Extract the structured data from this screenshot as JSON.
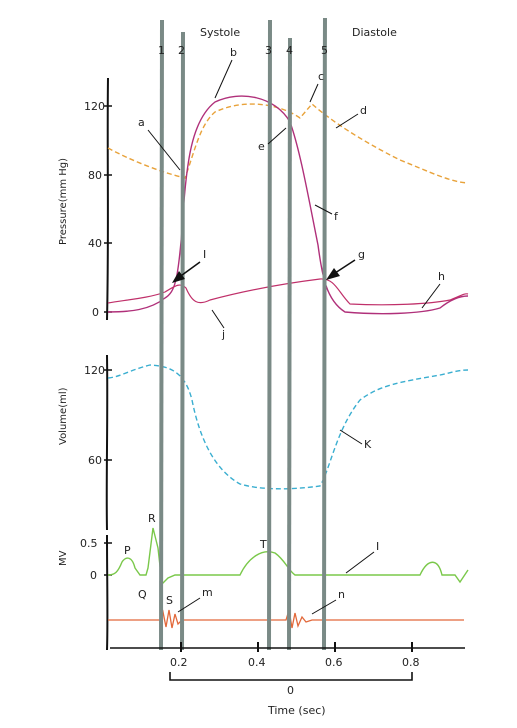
{
  "header": {
    "systole": "Systole",
    "diastole": "Diastole"
  },
  "phase_lines": [
    "1",
    "2",
    "3",
    "4",
    "5"
  ],
  "pressure_panel": {
    "ylabel": "Pressure(mm Hg)",
    "ticks": [
      "120",
      "80",
      "40",
      "0"
    ]
  },
  "volume_panel": {
    "ylabel": "Volume(ml)",
    "ticks": [
      "120",
      "60"
    ]
  },
  "ecg_panel": {
    "ylabel": "MV",
    "ticks": [
      "0.5",
      "0"
    ]
  },
  "time_axis": {
    "ticks": [
      "0.2",
      "0.4",
      "0.6",
      "0.8"
    ],
    "zero": "0",
    "label": "Time (sec)"
  },
  "annotations": {
    "a": "a",
    "b": "b",
    "c": "c",
    "d": "d",
    "e": "e",
    "f": "f",
    "g": "g",
    "h": "h",
    "i_arrow": "I",
    "i_ecg": "I",
    "j": "j",
    "k": "K",
    "m": "m",
    "n": "n",
    "P": "P",
    "Q": "Q",
    "R": "R",
    "S": "S",
    "T": "T"
  },
  "colors": {
    "ventricle": "#b0307a",
    "aorta": "#e8a23a",
    "atrium": "#c0306a",
    "volume": "#3aaed0",
    "ecg": "#7ac84a",
    "heart_sounds": "#e2683a",
    "phase_line": "#7a8a86",
    "ink": "#111111"
  }
}
